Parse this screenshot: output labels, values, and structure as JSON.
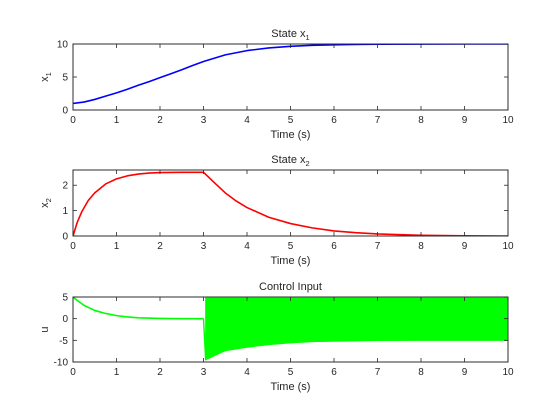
{
  "chart_data": [
    {
      "type": "line",
      "title": "State x",
      "title_sub": "1",
      "xlabel": "Time (s)",
      "ylabel": "x",
      "ylabel_sub": "1",
      "xlim": [
        0,
        10
      ],
      "ylim": [
        0,
        10
      ],
      "xticks": [
        0,
        1,
        2,
        3,
        4,
        5,
        6,
        7,
        8,
        9,
        10
      ],
      "yticks": [
        0,
        5,
        10
      ],
      "grid": false,
      "series": [
        {
          "color": "#0000ff",
          "x": [
            0,
            0.25,
            0.5,
            0.75,
            1,
            1.25,
            1.5,
            1.75,
            2,
            2.25,
            2.5,
            2.75,
            3,
            3.5,
            4,
            4.5,
            5,
            5.5,
            6,
            6.5,
            7,
            8,
            9,
            10
          ],
          "y": [
            1.0,
            1.2,
            1.6,
            2.1,
            2.6,
            3.15,
            3.75,
            4.3,
            4.9,
            5.5,
            6.1,
            6.75,
            7.35,
            8.35,
            9.0,
            9.4,
            9.65,
            9.8,
            9.88,
            9.94,
            9.97,
            9.99,
            10.0,
            10.0
          ]
        }
      ]
    },
    {
      "type": "line",
      "title": "State x",
      "title_sub": "2",
      "xlabel": "Time (s)",
      "ylabel": "x",
      "ylabel_sub": "2",
      "xlim": [
        0,
        10
      ],
      "ylim": [
        0,
        2.6
      ],
      "xticks": [
        0,
        1,
        2,
        3,
        4,
        5,
        6,
        7,
        8,
        9,
        10
      ],
      "yticks": [
        0,
        1,
        2
      ],
      "grid": false,
      "series": [
        {
          "color": "#ff0000",
          "x": [
            0,
            0.1,
            0.2,
            0.35,
            0.5,
            0.75,
            1,
            1.25,
            1.5,
            1.75,
            2,
            2.5,
            3,
            3.25,
            3.5,
            3.75,
            4,
            4.5,
            5,
            5.5,
            6,
            6.5,
            7,
            8,
            9,
            10
          ],
          "y": [
            0.0,
            0.55,
            0.95,
            1.4,
            1.7,
            2.05,
            2.25,
            2.37,
            2.44,
            2.48,
            2.5,
            2.51,
            2.51,
            2.1,
            1.7,
            1.38,
            1.12,
            0.74,
            0.49,
            0.32,
            0.2,
            0.13,
            0.08,
            0.03,
            0.01,
            0.0
          ]
        }
      ]
    },
    {
      "type": "line",
      "title": "Control Input",
      "xlabel": "Time (s)",
      "ylabel": "u",
      "xlim": [
        0,
        10
      ],
      "ylim": [
        -10,
        5
      ],
      "xticks": [
        0,
        1,
        2,
        3,
        4,
        5,
        6,
        7,
        8,
        9,
        10
      ],
      "yticks": [
        -10,
        -5,
        0,
        5
      ],
      "grid": false,
      "series": [
        {
          "color": "#00ff00",
          "x": [
            0,
            0.1,
            0.25,
            0.5,
            0.75,
            1,
            1.25,
            1.5,
            2,
            2.5,
            3
          ],
          "y": [
            5.0,
            4.2,
            3.1,
            1.9,
            1.2,
            0.7,
            0.4,
            0.2,
            0.05,
            0.0,
            0.0
          ],
          "chattering_band": {
            "x": [
              3.05,
              3.5,
              4,
              4.5,
              5,
              5.5,
              6,
              7,
              8,
              9,
              10
            ],
            "upper": [
              5.0,
              5.0,
              5.0,
              5.0,
              5.0,
              5.0,
              5.0,
              5.0,
              5.0,
              5.0,
              5.0
            ],
            "lower": [
              -9.5,
              -7.4,
              -6.6,
              -6.0,
              -5.6,
              -5.3,
              -5.2,
              -5.05,
              -5.0,
              -5.0,
              -5.0
            ]
          }
        }
      ]
    }
  ]
}
